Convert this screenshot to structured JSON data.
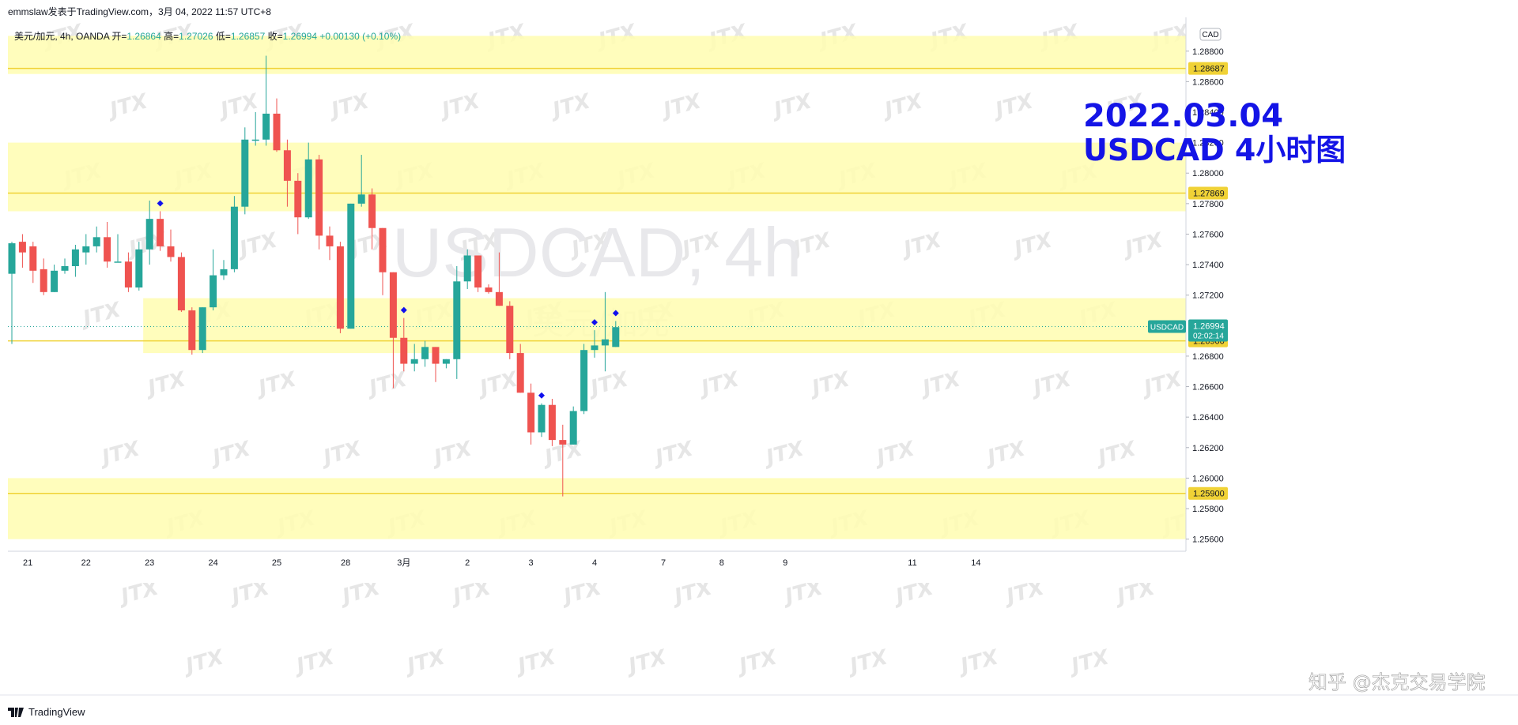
{
  "header": {
    "publisher_line": "emmslaw发表于TradingView.com，3月 04, 2022 11:57 UTC+8",
    "symbol_line": "美元/加元, 4h, OANDA",
    "open_label": "开=",
    "open_value": "1.26864",
    "high_label": "高=",
    "high_value": "1.27026",
    "low_label": "低=",
    "low_value": "1.26857",
    "close_label": "收=",
    "close_value": "1.26994",
    "change_value": "+0.00130 (+0.10%)"
  },
  "footer": {
    "brand": "TradingView",
    "watermark_credit": "知乎 @杰克交易学院"
  },
  "chart_data": {
    "type": "candlestick",
    "symbol": "USDCAD",
    "interval": "4h",
    "title_line1": "2022.03.04",
    "title_line2": "USDCAD 4小时图",
    "center_watermark": "USDCAD, 4h",
    "center_watermark_sub": "美元/加元",
    "currency_badge": "CAD",
    "repeating_watermark": "JTX",
    "ylim": [
      1.2551,
      1.2898
    ],
    "y_ticks": [
      "1.28800",
      "1.28600",
      "1.28400",
      "1.28200",
      "1.28000",
      "1.27800",
      "1.27600",
      "1.27400",
      "1.27200",
      "1.26800",
      "1.26600",
      "1.26400",
      "1.26200",
      "1.26000",
      "1.25800",
      "1.25600"
    ],
    "x_ticks": [
      {
        "label": "21",
        "bar": 1.5
      },
      {
        "label": "22",
        "bar": 7
      },
      {
        "label": "23",
        "bar": 13
      },
      {
        "label": "24",
        "bar": 19
      },
      {
        "label": "25",
        "bar": 25
      },
      {
        "label": "28",
        "bar": 31.5
      },
      {
        "label": "3月",
        "bar": 37
      },
      {
        "label": "2",
        "bar": 43
      },
      {
        "label": "3",
        "bar": 49
      },
      {
        "label": "4",
        "bar": 55
      },
      {
        "label": "7",
        "bar": 61.5
      },
      {
        "label": "8",
        "bar": 67
      },
      {
        "label": "9",
        "bar": 73
      },
      {
        "label": "11",
        "bar": 85
      },
      {
        "label": "14",
        "bar": 91
      }
    ],
    "zones": [
      {
        "from": 1.2865,
        "to": 1.289
      },
      {
        "from": 1.2775,
        "to": 1.282
      },
      {
        "from": 1.2682,
        "to": 1.2718,
        "start_bar": 12.4
      },
      {
        "from": 1.256,
        "to": 1.26
      }
    ],
    "levels": [
      {
        "value": 1.28687,
        "label": "1.28687"
      },
      {
        "value": 1.27869,
        "label": "1.27869"
      },
      {
        "value": 1.269,
        "label": "1.26900"
      },
      {
        "value": 1.259,
        "label": "1.25900"
      }
    ],
    "current_price": {
      "value": 1.26994,
      "label": "1.26994",
      "countdown": "02:02:14",
      "tag": "USDCAD"
    },
    "up_color": "#26a69a",
    "down_color": "#ef5350",
    "zone_color": "#fffdb0",
    "level_color": "#f0d236",
    "title_color": "#1414e6",
    "signals": [
      14,
      37,
      50,
      55,
      57
    ],
    "candles": [
      [
        1.2734,
        1.2755,
        1.2688,
        1.2754
      ],
      [
        1.2755,
        1.276,
        1.2738,
        1.2748
      ],
      [
        1.2752,
        1.2755,
        1.2728,
        1.2736
      ],
      [
        1.2737,
        1.2744,
        1.272,
        1.2722
      ],
      [
        1.2722,
        1.274,
        1.2722,
        1.2736
      ],
      [
        1.2736,
        1.2744,
        1.2734,
        1.2739
      ],
      [
        1.2739,
        1.2753,
        1.2732,
        1.275
      ],
      [
        1.2748,
        1.276,
        1.274,
        1.2752
      ],
      [
        1.2752,
        1.2765,
        1.2748,
        1.2758
      ],
      [
        1.2758,
        1.2768,
        1.2738,
        1.2742
      ],
      [
        1.2742,
        1.276,
        1.2742,
        1.2742
      ],
      [
        1.2742,
        1.2748,
        1.2722,
        1.2725
      ],
      [
        1.2725,
        1.2755,
        1.2723,
        1.275
      ],
      [
        1.275,
        1.2782,
        1.274,
        1.277
      ],
      [
        1.277,
        1.2775,
        1.2749,
        1.2752
      ],
      [
        1.2752,
        1.2763,
        1.2742,
        1.2745
      ],
      [
        1.2745,
        1.2748,
        1.2709,
        1.271
      ],
      [
        1.271,
        1.2712,
        1.2681,
        1.2684
      ],
      [
        1.2684,
        1.2712,
        1.2682,
        1.2712
      ],
      [
        1.2712,
        1.275,
        1.271,
        1.2733
      ],
      [
        1.2733,
        1.2743,
        1.273,
        1.2737
      ],
      [
        1.2737,
        1.2785,
        1.2735,
        1.2778
      ],
      [
        1.2778,
        1.283,
        1.2773,
        1.2822
      ],
      [
        1.2822,
        1.284,
        1.2818,
        1.2822
      ],
      [
        1.2822,
        1.2877,
        1.2818,
        1.2839
      ],
      [
        1.2839,
        1.2849,
        1.2814,
        1.2815
      ],
      [
        1.2815,
        1.2822,
        1.2778,
        1.2795
      ],
      [
        1.2795,
        1.28,
        1.276,
        1.2771
      ],
      [
        1.2771,
        1.282,
        1.277,
        1.2809
      ],
      [
        1.2809,
        1.2812,
        1.275,
        1.2759
      ],
      [
        1.2759,
        1.2765,
        1.2743,
        1.2752
      ],
      [
        1.2752,
        1.2755,
        1.2695,
        1.2698
      ],
      [
        1.2698,
        1.278,
        1.2698,
        1.278
      ],
      [
        1.278,
        1.2812,
        1.2778,
        1.2786
      ],
      [
        1.2786,
        1.279,
        1.275,
        1.2764
      ],
      [
        1.2764,
        1.2764,
        1.272,
        1.2735
      ],
      [
        1.2735,
        1.2735,
        1.2659,
        1.2692
      ],
      [
        1.2692,
        1.2705,
        1.267,
        1.2675
      ],
      [
        1.2675,
        1.2688,
        1.267,
        1.2678
      ],
      [
        1.2678,
        1.269,
        1.2673,
        1.2686
      ],
      [
        1.2686,
        1.2686,
        1.2663,
        1.2675
      ],
      [
        1.2675,
        1.2678,
        1.2672,
        1.2678
      ],
      [
        1.2678,
        1.2739,
        1.2665,
        1.2729
      ],
      [
        1.2729,
        1.275,
        1.2724,
        1.2746
      ],
      [
        1.2746,
        1.2746,
        1.2722,
        1.2725
      ],
      [
        1.2725,
        1.2727,
        1.2721,
        1.2722
      ],
      [
        1.2722,
        1.2748,
        1.2713,
        1.2713
      ],
      [
        1.2713,
        1.2716,
        1.2678,
        1.2682
      ],
      [
        1.2682,
        1.2688,
        1.2656,
        1.2656
      ],
      [
        1.2656,
        1.2662,
        1.2622,
        1.263
      ],
      [
        1.263,
        1.2649,
        1.2627,
        1.2648
      ],
      [
        1.2648,
        1.2652,
        1.2621,
        1.2625
      ],
      [
        1.2625,
        1.2635,
        1.2588,
        1.2622
      ],
      [
        1.2622,
        1.2647,
        1.2622,
        1.2644
      ],
      [
        1.2644,
        1.2688,
        1.2642,
        1.2684
      ],
      [
        1.2684,
        1.2697,
        1.2679,
        1.2687
      ],
      [
        1.2687,
        1.2722,
        1.267,
        1.2691
      ],
      [
        1.2686,
        1.2703,
        1.2686,
        1.2699
      ]
    ]
  }
}
